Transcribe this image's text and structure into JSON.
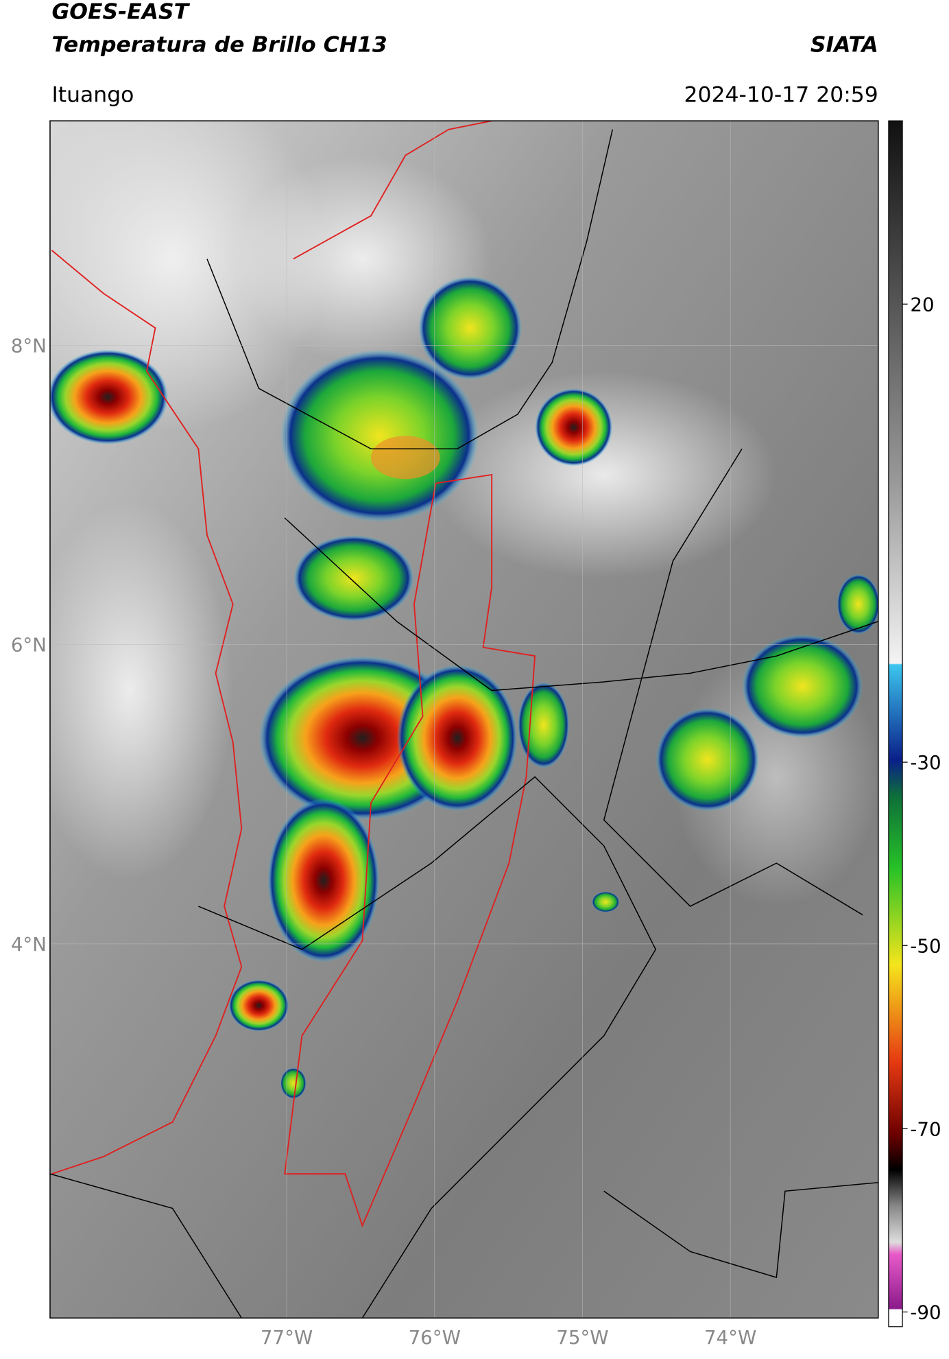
{
  "header": {
    "title": "GOES-EAST",
    "subtitle": "Temperatura de Brillo CH13",
    "agency": "SIATA",
    "location": "Ituango",
    "datetime": "2024-10-17 20:59"
  },
  "map": {
    "xlim": [
      -78.6,
      -73.0
    ],
    "ylim": [
      1.5,
      9.5
    ],
    "lat_ticks": [
      {
        "value": 8,
        "label": "8°N"
      },
      {
        "value": 6,
        "label": "6°N"
      },
      {
        "value": 4,
        "label": "4°N"
      }
    ],
    "lon_ticks": [
      {
        "value": -77,
        "label": "77°W"
      },
      {
        "value": -76,
        "label": "76°W"
      },
      {
        "value": -75,
        "label": "75°W"
      },
      {
        "value": -74,
        "label": "74°W"
      }
    ]
  },
  "colorbar": {
    "lim": [
      -91.6,
      40
    ],
    "ticks": [
      20,
      -30,
      -50,
      -70,
      -90
    ]
  }
}
